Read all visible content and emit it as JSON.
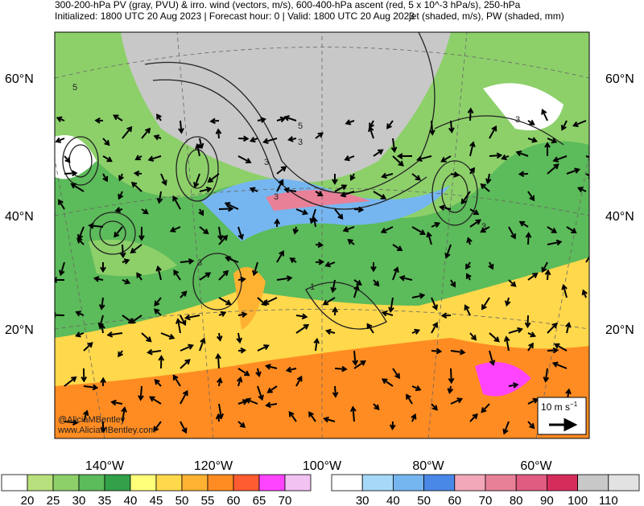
{
  "header": {
    "line1": "300-200-hPa PV (gray, PVU) & irro. wind (vectors, m/s), 600-400-hPa ascent (red, 5 x 10^-3 hPa/s), 250-hPa",
    "line2_left": "Initialized: 1800 UTC 20 Aug 2023 | Forecast hour: 0 | Valid: 1800 UTC 20 Aug 2023",
    "line2_right": "jet (shaded, m/s), PW (shaded, mm)"
  },
  "latitude_labels": [
    "60°N",
    "40°N",
    "20°N"
  ],
  "longitude_labels": [
    "140°W",
    "120°W",
    "100°W",
    "80°W",
    "60°W"
  ],
  "contour_labels": [
    "5",
    "3",
    "5",
    "3",
    "3",
    "3",
    "3",
    "3",
    "1"
  ],
  "credits": [
    "@AliciaMBentley",
    "www.AliciaMBentley.com"
  ],
  "wind_key": {
    "label": "10 m s",
    "exponent": "−1"
  },
  "pw_colorbar": {
    "ticks": [
      20,
      25,
      30,
      35,
      40,
      45,
      50,
      55,
      60,
      65,
      70
    ],
    "colors": [
      "#ffffff",
      "#b8e07c",
      "#8dd06a",
      "#5cbb5a",
      "#33a04a",
      "#ffff7a",
      "#ffd84c",
      "#ffb232",
      "#ff8c22",
      "#ff5c32",
      "#ff44ff",
      "#f2c2f2"
    ]
  },
  "jet_colorbar": {
    "ticks": [
      30,
      40,
      50,
      60,
      70,
      80,
      90,
      100,
      110
    ],
    "colors": [
      "#ffffff",
      "#a6d8f8",
      "#76b6f0",
      "#4a88e8",
      "#f2a8b8",
      "#e88098",
      "#e05c80",
      "#d62c5c",
      "#c8c8c8",
      "#e2e2e2"
    ]
  }
}
